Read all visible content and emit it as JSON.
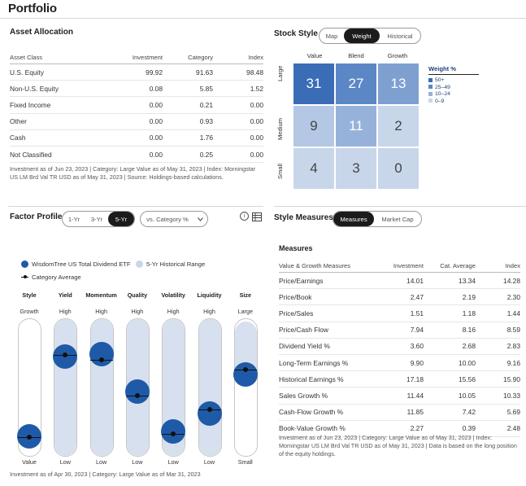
{
  "page_title": "Portfolio",
  "asset_allocation": {
    "title": "Asset Allocation",
    "columns": [
      "Asset Class",
      "Investment",
      "Category",
      "Index"
    ],
    "rows": [
      [
        "U.S. Equity",
        "99.92",
        "91.63",
        "98.48"
      ],
      [
        "Non-U.S. Equity",
        "0.08",
        "5.85",
        "1.52"
      ],
      [
        "Fixed Income",
        "0.00",
        "0.21",
        "0.00"
      ],
      [
        "Other",
        "0.00",
        "0.93",
        "0.00"
      ],
      [
        "Cash",
        "0.00",
        "1.76",
        "0.00"
      ],
      [
        "Not Classified",
        "0.00",
        "0.25",
        "0.00"
      ]
    ],
    "footnote": "Investment as of Jun 23, 2023 | Category: Large Value as of May 31, 2023 | Index: Morningstar US LM Brd Val TR USD as of May 31, 2023 | Source: Holdings-based calculations."
  },
  "stock_style": {
    "title": "Stock Style",
    "tabs": [
      "Map",
      "Weight",
      "Historical"
    ],
    "active_tab": "Weight",
    "col_labels": [
      "Value",
      "Blend",
      "Growth"
    ],
    "row_labels": [
      "Large",
      "Medium",
      "Small"
    ],
    "cells": [
      [
        "31",
        "27",
        "13"
      ],
      [
        "9",
        "11",
        "2"
      ],
      [
        "4",
        "3",
        "0"
      ]
    ],
    "legend_title": "Weight %",
    "legend": [
      {
        "label": "50+",
        "color": "#3a6db5"
      },
      {
        "label": "25–49",
        "color": "#5c87c6"
      },
      {
        "label": "10–24",
        "color": "#96b2da"
      },
      {
        "label": "0–9",
        "color": "#c8d6ea"
      }
    ]
  },
  "factor_profile": {
    "title": "Factor Profile",
    "periods": [
      "1-Yr",
      "3-Yr",
      "5-Yr"
    ],
    "active_period": "5-Yr",
    "compare_select": "vs. Category %",
    "legend_fund": "WisdomTree US Total Dividend ETF",
    "legend_range": "5-Yr Historical Range",
    "legend_avg": "Category Average",
    "factors": [
      {
        "name": "Style",
        "top": "Growth",
        "bottom": "Value",
        "fund": 0.06,
        "avg": 0.05,
        "range": [
          0.0,
          0.0
        ]
      },
      {
        "name": "Yield",
        "top": "High",
        "bottom": "Low",
        "fund": 0.77,
        "avg": 0.78,
        "range": [
          0.0,
          1.0
        ]
      },
      {
        "name": "Momentum",
        "top": "High",
        "bottom": "Low",
        "fund": 0.79,
        "avg": 0.74,
        "range": [
          0.0,
          1.0
        ]
      },
      {
        "name": "Quality",
        "top": "High",
        "bottom": "Low",
        "fund": 0.46,
        "avg": 0.42,
        "range": [
          0.0,
          1.0
        ]
      },
      {
        "name": "Volatility",
        "top": "High",
        "bottom": "Low",
        "fund": 0.1,
        "avg": 0.08,
        "range": [
          0.0,
          1.0
        ]
      },
      {
        "name": "Liquidity",
        "top": "High",
        "bottom": "Low",
        "fund": 0.26,
        "avg": 0.3,
        "range": [
          0.0,
          1.0
        ]
      },
      {
        "name": "Size",
        "top": "Large",
        "bottom": "Small",
        "fund": 0.61,
        "avg": 0.65,
        "range": [
          0.55,
          0.98
        ]
      }
    ],
    "footnote": "Investment as of Apr 30, 2023 | Category: Large Value as of Mar 31, 2023"
  },
  "style_measures": {
    "title": "Style Measures",
    "tabs": [
      "Measures",
      "Market Cap"
    ],
    "active_tab": "Measures",
    "subtitle": "Measures",
    "columns": [
      "Value & Growth Measures",
      "Investment",
      "Cat. Average",
      "Index"
    ],
    "rows": [
      [
        "Price/Earnings",
        "14.01",
        "13.34",
        "14.28"
      ],
      [
        "Price/Book",
        "2.47",
        "2.19",
        "2.30"
      ],
      [
        "Price/Sales",
        "1.51",
        "1.18",
        "1.44"
      ],
      [
        "Price/Cash Flow",
        "7.94",
        "8.16",
        "8.59"
      ],
      [
        "Dividend Yield %",
        "3.60",
        "2.68",
        "2.83"
      ],
      [
        "Long-Term Earnings %",
        "9.90",
        "10.00",
        "9.16"
      ],
      [
        "Historical Earnings %",
        "17.18",
        "15.56",
        "15.90"
      ],
      [
        "Sales Growth %",
        "11.44",
        "10.05",
        "10.33"
      ],
      [
        "Cash-Flow Growth %",
        "11.85",
        "7.42",
        "5.69"
      ],
      [
        "Book-Value Growth %",
        "2.27",
        "0.39",
        "2.48"
      ]
    ],
    "footnote": "Investment as of Jun 23, 2023 | Category: Large Value as of May 31, 2023 | Index: Morningstar US LM Brd Val TR USD as of May 31, 2023 | Data is based on the long position of the equity holdings."
  },
  "colors": {
    "fund": "#1f5aa8",
    "range": "#d7e0ee",
    "active_tab": "#1b1b1b"
  }
}
